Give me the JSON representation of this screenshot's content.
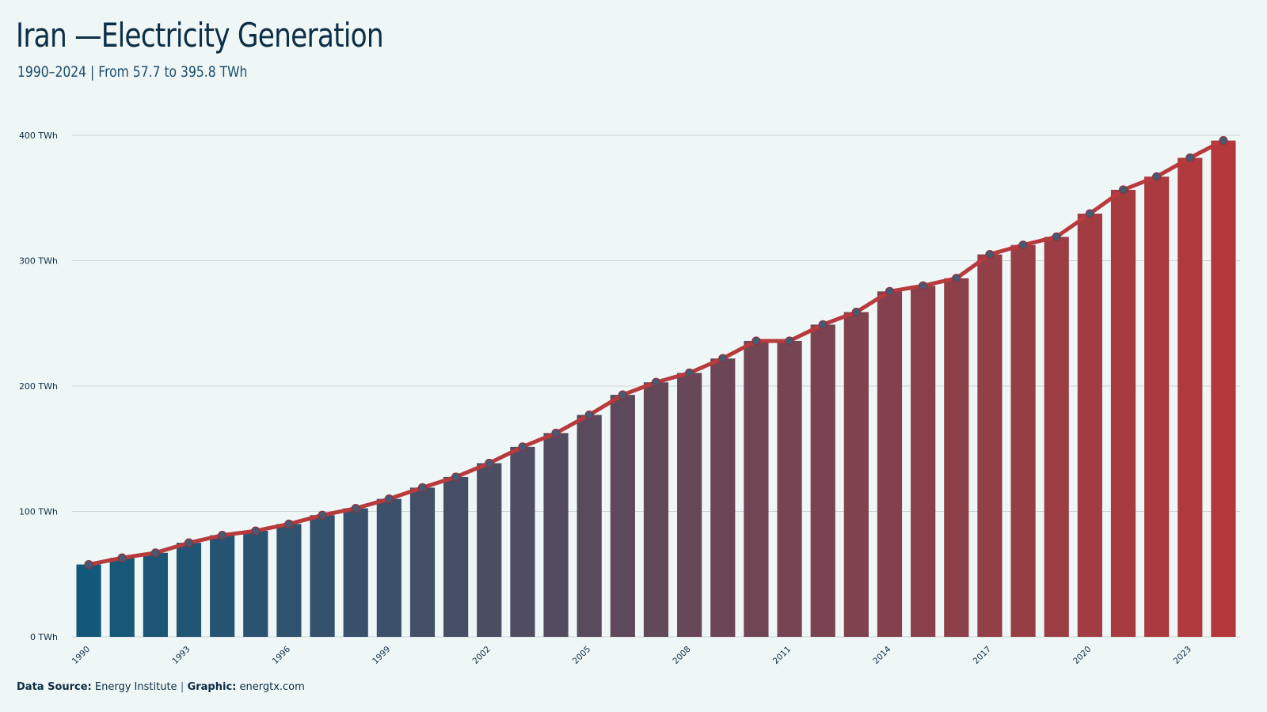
{
  "header": {
    "title": "Iran —Electricity Generation",
    "subtitle": "1990–2024 | From 57.7 to 395.8 TWh"
  },
  "footer": {
    "source_label": "Data Source:",
    "source_value": "Energy Institute",
    "separator": "|",
    "graphic_label": "Graphic:",
    "graphic_value": "energtx.com"
  },
  "colors": {
    "bar_start": "#12587a",
    "bar_end": "#b4383a",
    "line": "#b93a3c",
    "marker_fill": "#485a72",
    "grid": "#cbd6d8"
  },
  "chart_data": {
    "type": "bar",
    "categories": [
      "1990",
      "1991",
      "1992",
      "1993",
      "1994",
      "1995",
      "1996",
      "1997",
      "1998",
      "1999",
      "2000",
      "2001",
      "2002",
      "2003",
      "2004",
      "2005",
      "2006",
      "2007",
      "2008",
      "2009",
      "2010",
      "2011",
      "2012",
      "2013",
      "2014",
      "2015",
      "2016",
      "2017",
      "2018",
      "2019",
      "2020",
      "2021",
      "2022",
      "2023",
      "2024"
    ],
    "values": [
      57.7,
      63,
      67,
      75,
      81,
      84.5,
      90,
      97,
      102.5,
      110,
      119,
      127.5,
      138.5,
      151.5,
      162.5,
      177,
      193,
      203,
      210.5,
      222,
      236,
      236,
      249,
      259,
      275.5,
      280,
      286,
      305,
      312.5,
      319,
      337.5,
      356.5,
      367,
      382,
      395.8
    ],
    "overlay": "line-with-markers",
    "ylim": [
      0,
      400
    ],
    "yticks": [
      0,
      100,
      200,
      300,
      400
    ],
    "ytick_labels": [
      "0 TWh",
      "100 TWh",
      "200 TWh",
      "300 TWh",
      "400 TWh"
    ],
    "xtick_labels": [
      "1990",
      "1993",
      "1996",
      "1999",
      "2002",
      "2005",
      "2008",
      "2011",
      "2014",
      "2017",
      "2020",
      "2023"
    ],
    "grid": true,
    "xlabel": "",
    "ylabel": ""
  }
}
